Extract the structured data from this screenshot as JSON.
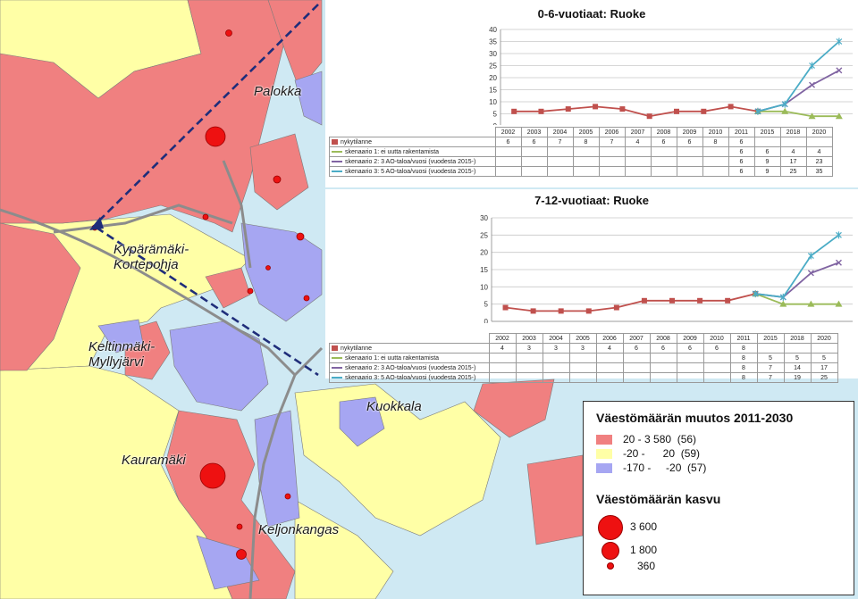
{
  "map": {
    "places": [
      "Palokka",
      "Kypärämäki-\nKortepohja",
      "Keltinmäki-\nMyllyjärvi",
      "Kuokkala",
      "Kauramäki",
      "Keljonkangas"
    ],
    "colors": {
      "water": "#cfe9f3",
      "growth": "#f08080",
      "stable": "#ffffa6",
      "decline": "#a6a6f2",
      "road": "#8c8c8c",
      "arrow": "#1f2d7a",
      "circle": "#ee1111"
    }
  },
  "chart_data": [
    {
      "type": "line",
      "title": "0-6-vuotiaat: Ruoke",
      "categories": [
        "2002",
        "2003",
        "2004",
        "2005",
        "2006",
        "2007",
        "2008",
        "2009",
        "2010",
        "2011",
        "2015",
        "2018",
        "2020"
      ],
      "ylim": [
        0,
        40
      ],
      "yticks": [
        "0",
        "5",
        "10",
        "15",
        "20",
        "25",
        "30",
        "35",
        "40"
      ],
      "series": [
        {
          "name": "nykytilanne",
          "color": "#c0504d",
          "marker": "square",
          "values": [
            6,
            6,
            7,
            8,
            7,
            4,
            6,
            6,
            8,
            6,
            null,
            null,
            null
          ]
        },
        {
          "name": "skenaario 1: ei uutta rakentamista",
          "color": "#9bbb59",
          "marker": "triangle",
          "values": [
            null,
            null,
            null,
            null,
            null,
            null,
            null,
            null,
            null,
            6,
            6,
            4,
            4
          ]
        },
        {
          "name": "skenaario 2: 3 AO-taloa/vuosi (vuodesta 2015-)",
          "color": "#8064a2",
          "marker": "x",
          "values": [
            null,
            null,
            null,
            null,
            null,
            null,
            null,
            null,
            null,
            6,
            9,
            17,
            23
          ]
        },
        {
          "name": "skenaario 3: 5 AO-taloa/vuosi  (vuodesta 2015-)",
          "color": "#4bacc6",
          "marker": "star",
          "values": [
            null,
            null,
            null,
            null,
            null,
            null,
            null,
            null,
            null,
            6,
            9,
            25,
            35
          ]
        }
      ],
      "table": [
        [
          "6",
          "6",
          "7",
          "8",
          "7",
          "4",
          "6",
          "6",
          "8",
          "6",
          "",
          "",
          ""
        ],
        [
          "",
          "",
          "",
          "",
          "",
          "",
          "",
          "",
          "",
          "6",
          "6",
          "4",
          "4"
        ],
        [
          "",
          "",
          "",
          "",
          "",
          "",
          "",
          "",
          "",
          "6",
          "9",
          "17",
          "23"
        ],
        [
          "",
          "",
          "",
          "",
          "",
          "",
          "",
          "",
          "",
          "6",
          "9",
          "25",
          "35"
        ]
      ]
    },
    {
      "type": "line",
      "title": "7-12-vuotiaat: Ruoke",
      "categories": [
        "2002",
        "2003",
        "2004",
        "2005",
        "2006",
        "2007",
        "2008",
        "2009",
        "2010",
        "2011",
        "2015",
        "2018",
        "2020"
      ],
      "ylim": [
        0,
        30
      ],
      "yticks": [
        "0",
        "5",
        "10",
        "15",
        "20",
        "25",
        "30"
      ],
      "series": [
        {
          "name": "nykytilanne",
          "color": "#c0504d",
          "marker": "square",
          "values": [
            4,
            3,
            3,
            3,
            4,
            6,
            6,
            6,
            6,
            8,
            null,
            null,
            null
          ]
        },
        {
          "name": "skenaario 1: ei uutta rakentamista",
          "color": "#9bbb59",
          "marker": "triangle",
          "values": [
            null,
            null,
            null,
            null,
            null,
            null,
            null,
            null,
            null,
            8,
            5,
            5,
            5
          ]
        },
        {
          "name": "skenaario 2: 3 AO-taloa/vuosi (vuodesta 2015-)",
          "color": "#8064a2",
          "marker": "x",
          "values": [
            null,
            null,
            null,
            null,
            null,
            null,
            null,
            null,
            null,
            8,
            7,
            14,
            17
          ]
        },
        {
          "name": "skenaario 3: 5 AO-taloa/vuosi (vuodesta 2015-)",
          "color": "#4bacc6",
          "marker": "star",
          "values": [
            null,
            null,
            null,
            null,
            null,
            null,
            null,
            null,
            null,
            8,
            7,
            19,
            25
          ]
        }
      ],
      "table": [
        [
          "4",
          "3",
          "3",
          "3",
          "4",
          "6",
          "6",
          "6",
          "6",
          "8",
          "",
          "",
          ""
        ],
        [
          "",
          "",
          "",
          "",
          "",
          "",
          "",
          "",
          "",
          "8",
          "5",
          "5",
          "5"
        ],
        [
          "",
          "",
          "",
          "",
          "",
          "",
          "",
          "",
          "",
          "8",
          "7",
          "14",
          "17"
        ],
        [
          "",
          "",
          "",
          "",
          "",
          "",
          "",
          "",
          "",
          "8",
          "7",
          "19",
          "25"
        ]
      ]
    }
  ],
  "legend": {
    "title1": "Väestömäärän muutos 2011-2030",
    "classes": [
      {
        "label": "20 - 3 580  (56)",
        "color": "#f08080"
      },
      {
        "label": "-20 -      20  (59)",
        "color": "#ffffa6"
      },
      {
        "label": "-170 -     -20  (57)",
        "color": "#a6a6f2"
      }
    ],
    "title2": "Väestömäärän kasvu",
    "sizes": [
      {
        "label": "3 600",
        "value": 3600
      },
      {
        "label": "1 800",
        "value": 1800
      },
      {
        "label": "360",
        "value": 360
      }
    ]
  }
}
